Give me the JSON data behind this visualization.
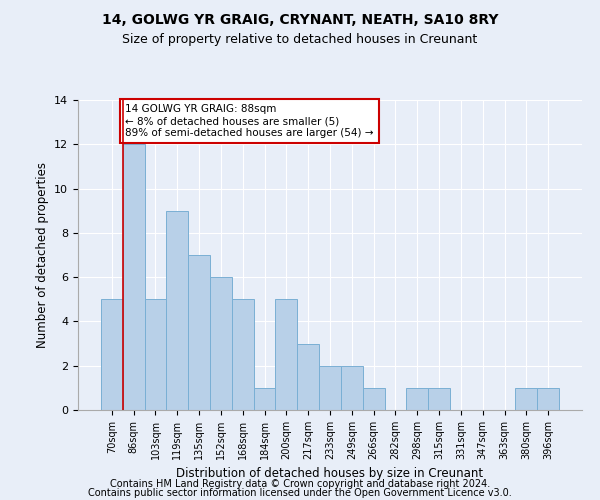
{
  "title1": "14, GOLWG YR GRAIG, CRYNANT, NEATH, SA10 8RY",
  "title2": "Size of property relative to detached houses in Creunant",
  "xlabel": "Distribution of detached houses by size in Creunant",
  "ylabel": "Number of detached properties",
  "categories": [
    "70sqm",
    "86sqm",
    "103sqm",
    "119sqm",
    "135sqm",
    "152sqm",
    "168sqm",
    "184sqm",
    "200sqm",
    "217sqm",
    "233sqm",
    "249sqm",
    "266sqm",
    "282sqm",
    "298sqm",
    "315sqm",
    "331sqm",
    "347sqm",
    "363sqm",
    "380sqm",
    "396sqm"
  ],
  "values": [
    5,
    12,
    5,
    9,
    7,
    6,
    5,
    1,
    5,
    3,
    2,
    2,
    1,
    0,
    1,
    1,
    0,
    0,
    0,
    1,
    1
  ],
  "bar_color": "#b8d0e8",
  "bar_edge_color": "#7aafd4",
  "highlight_index": 1,
  "highlight_line_color": "#cc0000",
  "annotation_text": "14 GOLWG YR GRAIG: 88sqm\n← 8% of detached houses are smaller (5)\n89% of semi-detached houses are larger (54) →",
  "annotation_box_color": "#ffffff",
  "annotation_box_edge": "#cc0000",
  "ylim": [
    0,
    14
  ],
  "yticks": [
    0,
    2,
    4,
    6,
    8,
    10,
    12,
    14
  ],
  "footer1": "Contains HM Land Registry data © Crown copyright and database right 2024.",
  "footer2": "Contains public sector information licensed under the Open Government Licence v3.0.",
  "background_color": "#e8eef8",
  "plot_bg_color": "#e8eef8",
  "title1_fontsize": 10,
  "title2_fontsize": 9,
  "xlabel_fontsize": 8.5,
  "ylabel_fontsize": 8.5,
  "footer_fontsize": 7,
  "annot_fontsize": 7.5
}
